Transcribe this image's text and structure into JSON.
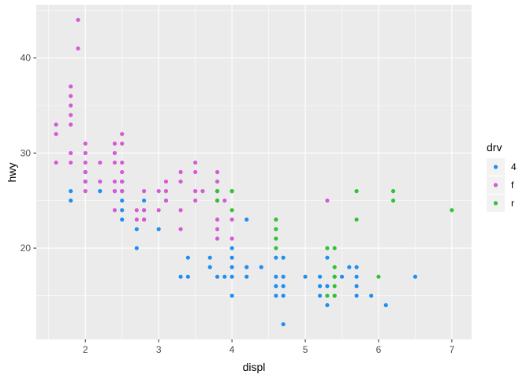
{
  "chart_data": {
    "type": "scatter",
    "xlabel": "displ",
    "ylabel": "hwy",
    "xlim": [
      1.33,
      7.27
    ],
    "ylim": [
      10.4,
      45.6
    ],
    "xticks": [
      2,
      3,
      4,
      5,
      6,
      7
    ],
    "yticks": [
      20,
      30,
      40
    ],
    "grid": true,
    "legend": {
      "title": "drv",
      "position": "right"
    },
    "series": [
      {
        "name": "4",
        "color": "#1f8ff0",
        "points": [
          [
            1.8,
            26
          ],
          [
            1.8,
            25
          ],
          [
            2.0,
            28
          ],
          [
            2.0,
            27
          ],
          [
            2.2,
            26
          ],
          [
            2.4,
            26
          ],
          [
            2.5,
            27
          ],
          [
            2.5,
            26
          ],
          [
            2.5,
            25
          ],
          [
            2.5,
            24
          ],
          [
            2.5,
            23
          ],
          [
            2.7,
            22
          ],
          [
            2.7,
            20
          ],
          [
            2.8,
            25
          ],
          [
            2.8,
            24
          ],
          [
            3.0,
            22
          ],
          [
            3.1,
            25
          ],
          [
            3.3,
            17
          ],
          [
            3.4,
            19
          ],
          [
            3.4,
            17
          ],
          [
            3.7,
            19
          ],
          [
            3.7,
            18
          ],
          [
            3.8,
            17
          ],
          [
            3.9,
            17
          ],
          [
            4.0,
            20
          ],
          [
            4.0,
            19
          ],
          [
            4.0,
            18
          ],
          [
            4.0,
            17
          ],
          [
            4.0,
            15
          ],
          [
            4.2,
            23
          ],
          [
            4.2,
            18
          ],
          [
            4.2,
            17
          ],
          [
            4.4,
            18
          ],
          [
            4.6,
            19
          ],
          [
            4.6,
            17
          ],
          [
            4.6,
            16
          ],
          [
            4.6,
            15
          ],
          [
            4.7,
            19
          ],
          [
            4.7,
            17
          ],
          [
            4.7,
            16
          ],
          [
            4.7,
            15
          ],
          [
            4.7,
            12
          ],
          [
            5.0,
            17
          ],
          [
            5.2,
            17
          ],
          [
            5.2,
            16
          ],
          [
            5.2,
            15
          ],
          [
            5.3,
            19
          ],
          [
            5.3,
            16
          ],
          [
            5.3,
            14
          ],
          [
            5.4,
            17
          ],
          [
            5.4,
            15
          ],
          [
            5.5,
            17
          ],
          [
            5.7,
            18
          ],
          [
            5.7,
            17
          ],
          [
            5.7,
            15
          ],
          [
            5.9,
            15
          ],
          [
            6.1,
            14
          ],
          [
            6.5,
            17
          ],
          [
            5.6,
            18
          ],
          [
            5.7,
            16
          ]
        ]
      },
      {
        "name": "f",
        "color": "#d45bd4",
        "points": [
          [
            1.6,
            33
          ],
          [
            1.6,
            32
          ],
          [
            1.6,
            29
          ],
          [
            1.8,
            37
          ],
          [
            1.8,
            36
          ],
          [
            1.8,
            35
          ],
          [
            1.8,
            34
          ],
          [
            1.8,
            33
          ],
          [
            1.8,
            30
          ],
          [
            1.8,
            29
          ],
          [
            1.9,
            44
          ],
          [
            1.9,
            41
          ],
          [
            2.0,
            31
          ],
          [
            2.0,
            30
          ],
          [
            2.0,
            29
          ],
          [
            2.0,
            28
          ],
          [
            2.0,
            27
          ],
          [
            2.0,
            26
          ],
          [
            2.2,
            29
          ],
          [
            2.2,
            27
          ],
          [
            2.4,
            31
          ],
          [
            2.4,
            30
          ],
          [
            2.4,
            29
          ],
          [
            2.4,
            27
          ],
          [
            2.4,
            26
          ],
          [
            2.4,
            24
          ],
          [
            2.5,
            32
          ],
          [
            2.5,
            31
          ],
          [
            2.5,
            29
          ],
          [
            2.5,
            28
          ],
          [
            2.5,
            27
          ],
          [
            2.5,
            26
          ],
          [
            2.7,
            24
          ],
          [
            2.8,
            26
          ],
          [
            2.8,
            24
          ],
          [
            2.8,
            23
          ],
          [
            3.0,
            26
          ],
          [
            3.0,
            24
          ],
          [
            3.1,
            27
          ],
          [
            3.1,
            26
          ],
          [
            3.3,
            28
          ],
          [
            3.3,
            27
          ],
          [
            3.3,
            24
          ],
          [
            3.3,
            22
          ],
          [
            3.5,
            28
          ],
          [
            3.5,
            26
          ],
          [
            3.5,
            25
          ],
          [
            3.6,
            26
          ],
          [
            3.8,
            28
          ],
          [
            3.8,
            27
          ],
          [
            3.8,
            26
          ],
          [
            3.8,
            25
          ],
          [
            3.8,
            23
          ],
          [
            3.8,
            22
          ],
          [
            3.8,
            21
          ],
          [
            3.9,
            25
          ],
          [
            4.0,
            26
          ],
          [
            4.0,
            23
          ],
          [
            4.0,
            21
          ],
          [
            5.3,
            25
          ],
          [
            3.1,
            25
          ],
          [
            3.5,
            29
          ],
          [
            2.8,
            23
          ],
          [
            2.7,
            23
          ]
        ]
      },
      {
        "name": "r",
        "color": "#33c233",
        "points": [
          [
            3.8,
            26
          ],
          [
            3.8,
            25
          ],
          [
            4.0,
            26
          ],
          [
            4.0,
            24
          ],
          [
            4.6,
            23
          ],
          [
            4.6,
            22
          ],
          [
            4.6,
            21
          ],
          [
            4.6,
            20
          ],
          [
            5.3,
            20
          ],
          [
            5.3,
            15
          ],
          [
            5.4,
            20
          ],
          [
            5.4,
            18
          ],
          [
            5.4,
            17
          ],
          [
            5.4,
            16
          ],
          [
            5.4,
            15
          ],
          [
            5.7,
            26
          ],
          [
            5.7,
            23
          ],
          [
            6.0,
            17
          ],
          [
            6.2,
            26
          ],
          [
            6.2,
            25
          ],
          [
            7.0,
            24
          ]
        ]
      }
    ]
  }
}
